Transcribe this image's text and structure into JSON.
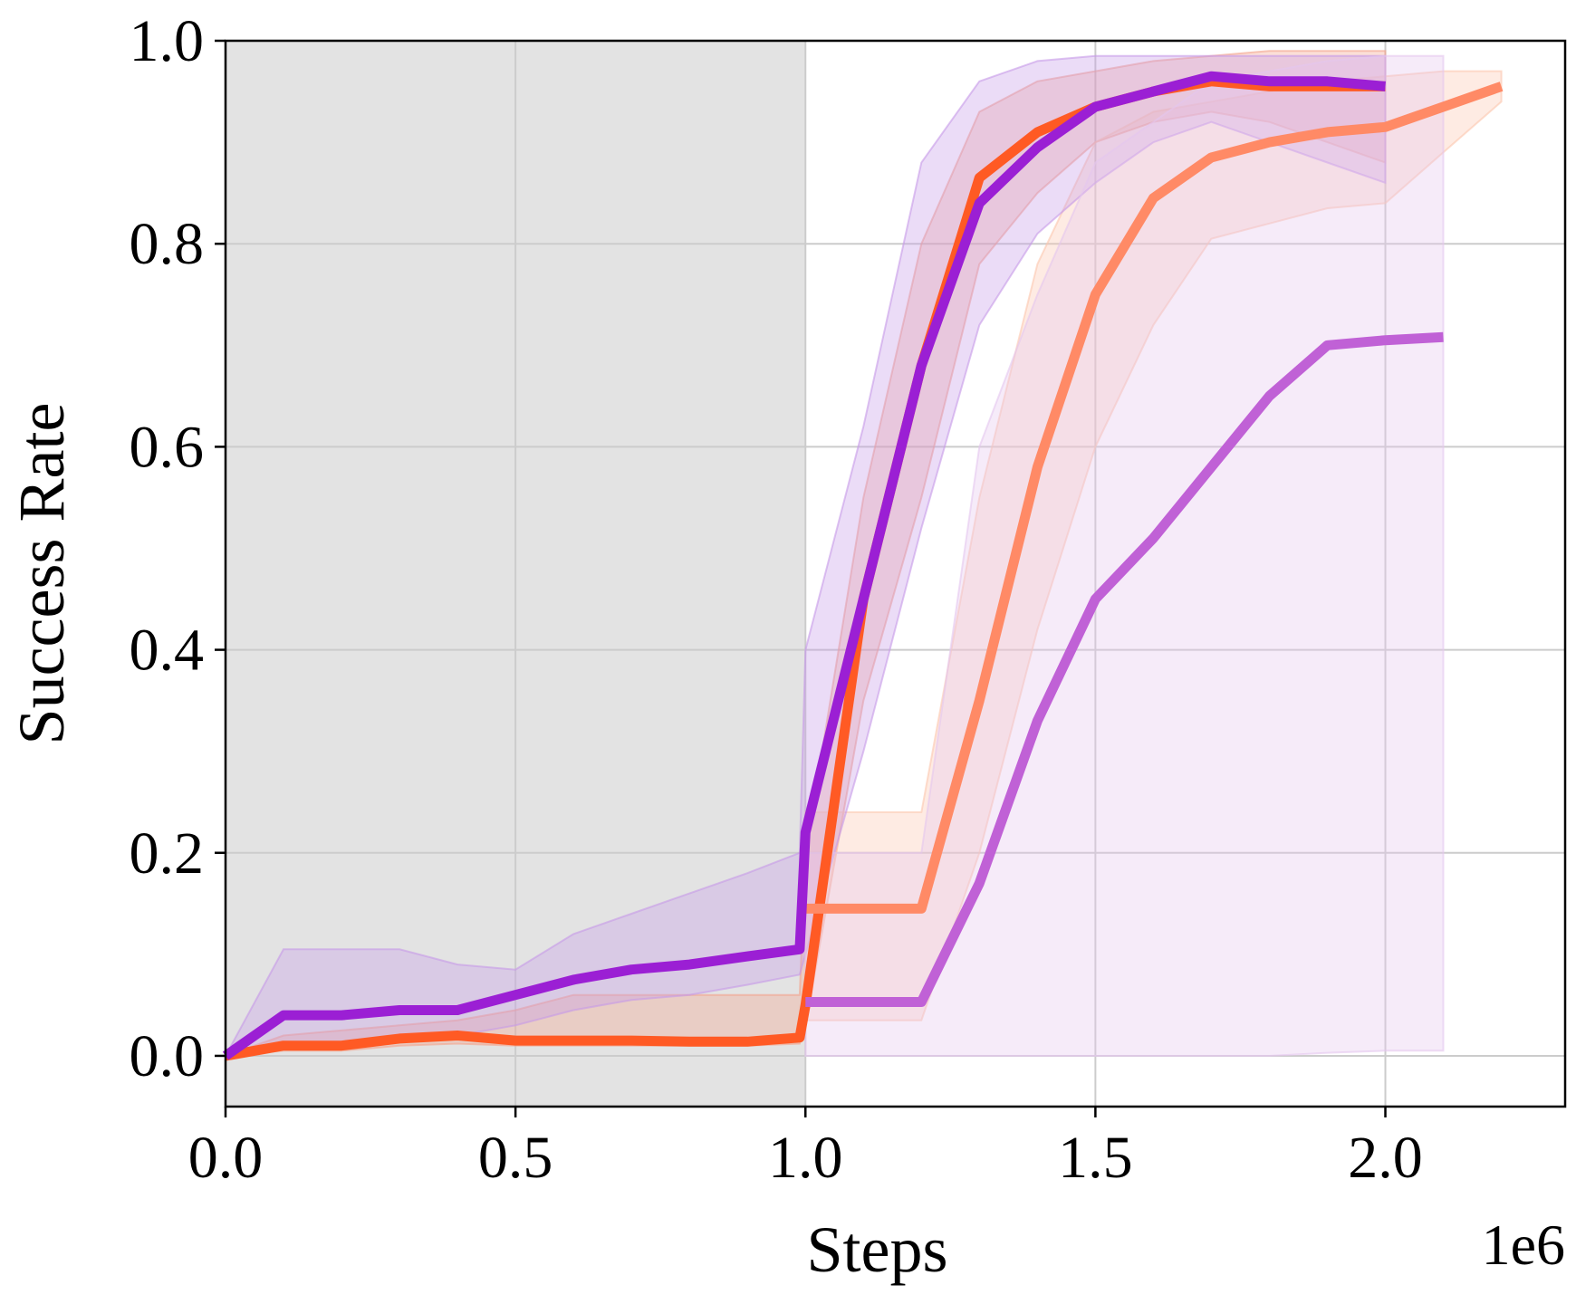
{
  "chart_data": {
    "type": "line",
    "title": "",
    "xlabel": "Steps",
    "ylabel": "Success Rate",
    "x_offset_label": "1e6",
    "xlim": [
      0.0,
      2.31
    ],
    "ylim": [
      -0.05,
      1.0
    ],
    "x_ticks": [
      "0.0",
      "0.5",
      "1.0",
      "1.5",
      "2.0"
    ],
    "y_ticks": [
      "0.0",
      "0.2",
      "0.4",
      "0.6",
      "0.8",
      "1.0"
    ],
    "grid": true,
    "shaded_region": {
      "x_start": 0.0,
      "x_end": 1.0,
      "color": "#e3e3e3"
    },
    "series": [
      {
        "color": "#ff5a24",
        "band_color": "#f4a38c",
        "x": [
          0,
          0.1,
          0.2,
          0.3,
          0.4,
          0.5,
          0.6,
          0.7,
          0.8,
          0.9,
          0.99,
          1.0,
          1.1,
          1.2,
          1.3,
          1.4,
          1.5,
          1.6,
          1.7,
          1.8,
          1.9,
          2.0
        ],
        "y": [
          0,
          0.01,
          0.01,
          0.017,
          0.02,
          0.015,
          0.015,
          0.015,
          0.014,
          0.014,
          0.018,
          0.05,
          0.45,
          0.68,
          0.865,
          0.91,
          0.935,
          0.95,
          0.96,
          0.955,
          0.955,
          0.955
        ],
        "lower": [
          0,
          0.005,
          0.005,
          0.01,
          0.012,
          0.01,
          0.01,
          0.01,
          0.01,
          0.01,
          0.012,
          0.03,
          0.35,
          0.55,
          0.78,
          0.85,
          0.9,
          0.92,
          0.93,
          0.92,
          0.9,
          0.88
        ],
        "upper": [
          0,
          0.02,
          0.025,
          0.03,
          0.035,
          0.045,
          0.06,
          0.06,
          0.06,
          0.06,
          0.06,
          0.2,
          0.55,
          0.8,
          0.93,
          0.96,
          0.97,
          0.98,
          0.985,
          0.99,
          0.99,
          0.99
        ]
      },
      {
        "color": "#ff8a66",
        "band_color": "#fbc7ae",
        "x": [
          1.0,
          1.2,
          1.3,
          1.4,
          1.5,
          1.6,
          1.7,
          1.8,
          1.9,
          2.0,
          2.1,
          2.2
        ],
        "y": [
          0.145,
          0.145,
          0.35,
          0.58,
          0.75,
          0.845,
          0.885,
          0.9,
          0.91,
          0.915,
          0.935,
          0.955
        ],
        "lower": [
          0.035,
          0.035,
          0.2,
          0.42,
          0.6,
          0.72,
          0.805,
          0.82,
          0.835,
          0.84,
          0.89,
          0.94
        ],
        "upper": [
          0.24,
          0.24,
          0.55,
          0.78,
          0.9,
          0.93,
          0.94,
          0.95,
          0.96,
          0.965,
          0.97,
          0.97
        ]
      },
      {
        "color": "#9b1fd4",
        "band_color": "#c79ae8",
        "x": [
          0,
          0.1,
          0.2,
          0.3,
          0.4,
          0.5,
          0.6,
          0.7,
          0.8,
          0.9,
          0.99,
          1.0,
          1.1,
          1.2,
          1.3,
          1.4,
          1.5,
          1.6,
          1.7,
          1.8,
          1.9,
          2.0
        ],
        "y": [
          0,
          0.04,
          0.04,
          0.045,
          0.045,
          0.06,
          0.075,
          0.085,
          0.09,
          0.098,
          0.105,
          0.22,
          0.45,
          0.68,
          0.84,
          0.895,
          0.935,
          0.95,
          0.965,
          0.96,
          0.96,
          0.955
        ],
        "lower": [
          0,
          0.01,
          0.01,
          0.015,
          0.02,
          0.03,
          0.045,
          0.055,
          0.06,
          0.07,
          0.08,
          0.1,
          0.3,
          0.52,
          0.72,
          0.81,
          0.86,
          0.9,
          0.92,
          0.9,
          0.88,
          0.86
        ],
        "upper": [
          0,
          0.105,
          0.105,
          0.105,
          0.09,
          0.085,
          0.12,
          0.14,
          0.16,
          0.18,
          0.2,
          0.4,
          0.62,
          0.88,
          0.96,
          0.98,
          0.985,
          0.985,
          0.985,
          0.985,
          0.985,
          0.985
        ]
      },
      {
        "color": "#c061d6",
        "band_color": "#e4c6ef",
        "x": [
          1.0,
          1.2,
          1.3,
          1.4,
          1.5,
          1.6,
          1.7,
          1.8,
          1.9,
          2.0,
          2.1
        ],
        "y": [
          0.053,
          0.053,
          0.17,
          0.33,
          0.45,
          0.51,
          0.58,
          0.65,
          0.7,
          0.705,
          0.708
        ],
        "lower": [
          0,
          0,
          0,
          0,
          0,
          0,
          0,
          0,
          0.003,
          0.005,
          0.005
        ],
        "upper": [
          0.2,
          0.2,
          0.6,
          0.75,
          0.88,
          0.92,
          0.96,
          0.97,
          0.98,
          0.985,
          0.985
        ]
      }
    ]
  }
}
